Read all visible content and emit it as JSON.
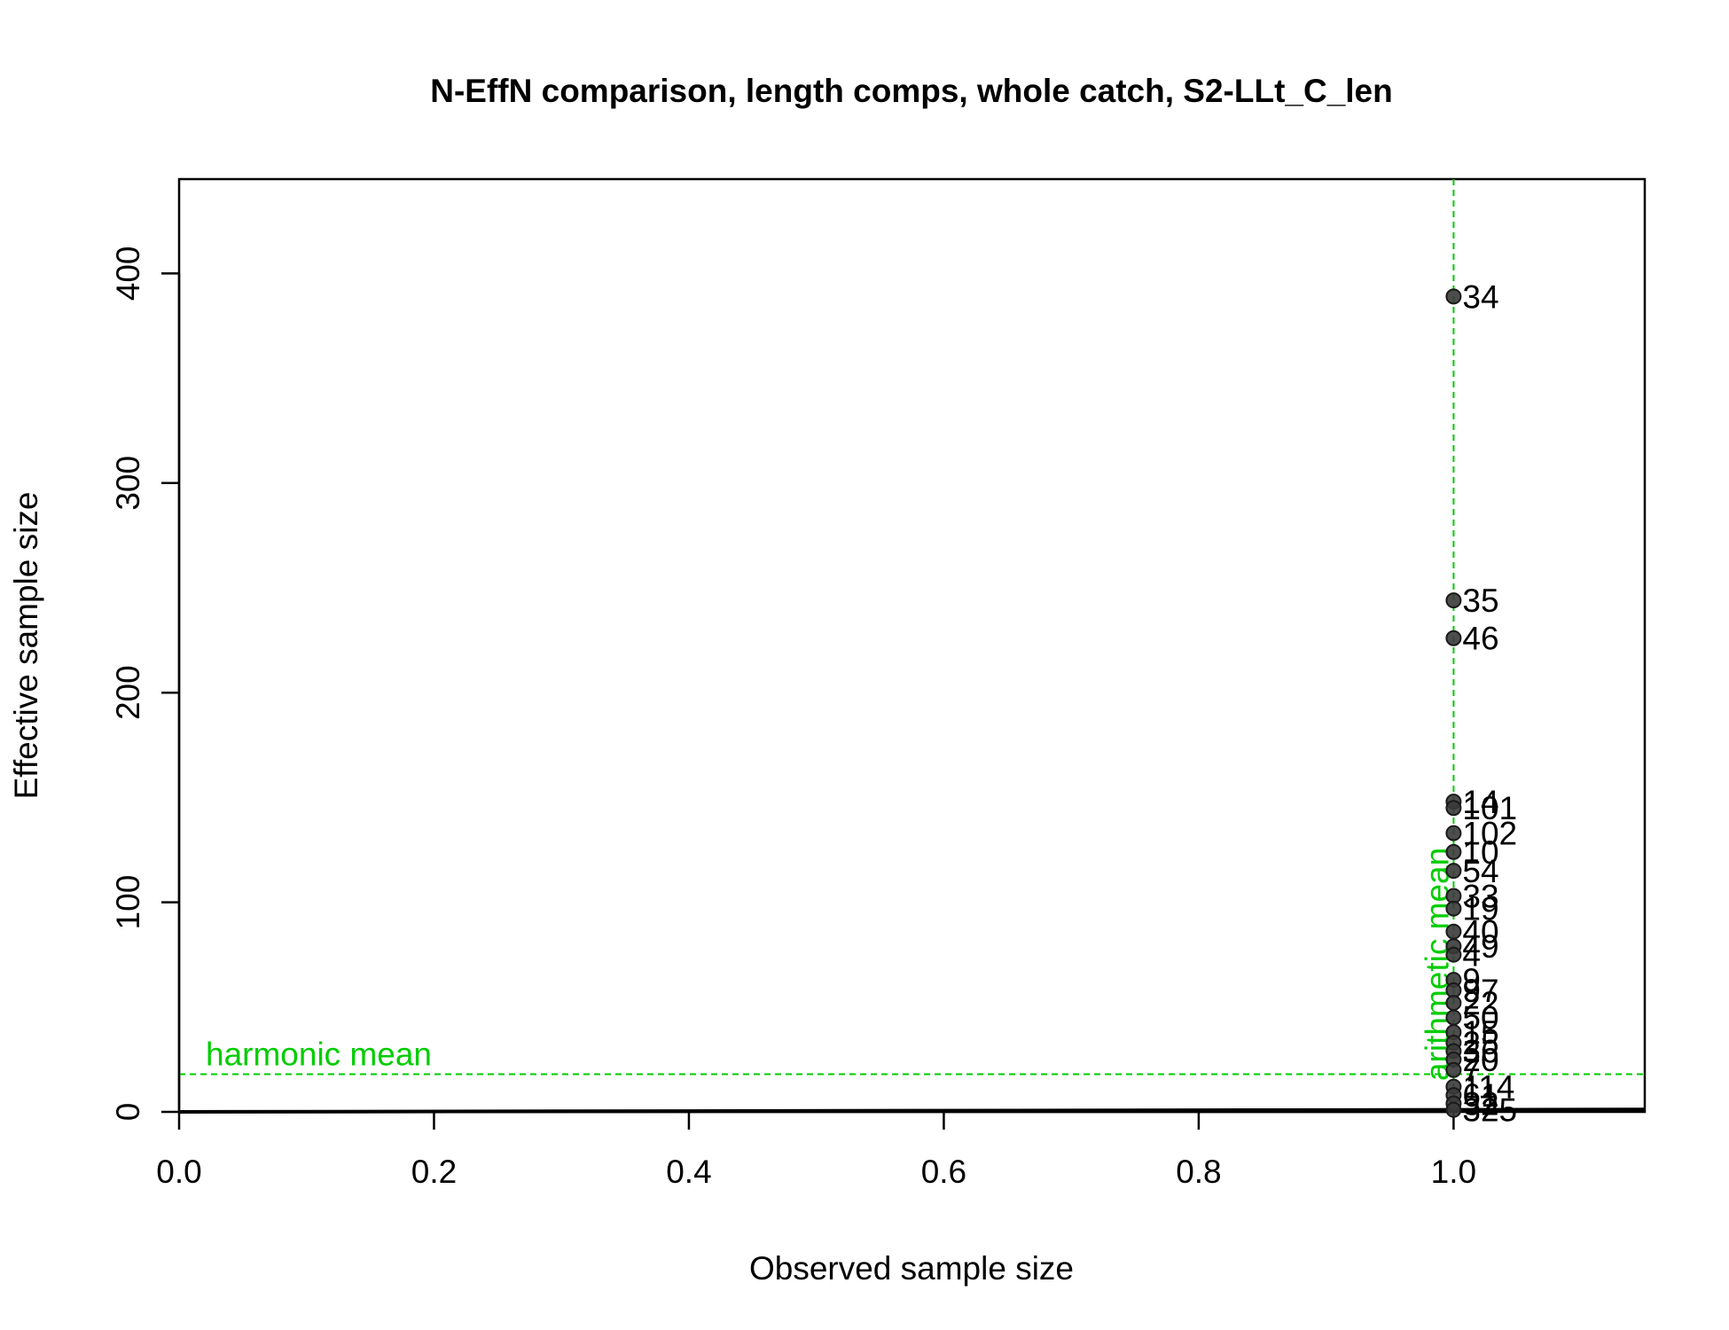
{
  "chart_data": {
    "type": "scatter",
    "title": "N-EffN comparison, length comps, whole catch, S2-LLt_C_len",
    "xlabel": "Observed sample size",
    "ylabel": "Effective sample size",
    "xlim": [
      0,
      1.15
    ],
    "ylim": [
      0,
      445
    ],
    "xticks": [
      "0.0",
      "0.2",
      "0.4",
      "0.6",
      "0.8",
      "1.0"
    ],
    "yticks": [
      "0",
      "100",
      "200",
      "300",
      "400"
    ],
    "grid": false,
    "points": [
      {
        "x": 1,
        "y": 389,
        "label": "34"
      },
      {
        "x": 1,
        "y": 244,
        "label": "35"
      },
      {
        "x": 1,
        "y": 226,
        "label": "46"
      },
      {
        "x": 1,
        "y": 148,
        "label": "14"
      },
      {
        "x": 1,
        "y": 145,
        "label": "101"
      },
      {
        "x": 1,
        "y": 133,
        "label": "102"
      },
      {
        "x": 1,
        "y": 124,
        "label": "10"
      },
      {
        "x": 1,
        "y": 115,
        "label": "54"
      },
      {
        "x": 1,
        "y": 103,
        "label": "33"
      },
      {
        "x": 1,
        "y": 97,
        "label": "19"
      },
      {
        "x": 1,
        "y": 86,
        "label": "40"
      },
      {
        "x": 1,
        "y": 79,
        "label": "49"
      },
      {
        "x": 1,
        "y": 75,
        "label": "4"
      },
      {
        "x": 1,
        "y": 63,
        "label": "9"
      },
      {
        "x": 1,
        "y": 58,
        "label": "97"
      },
      {
        "x": 1,
        "y": 52,
        "label": "22"
      },
      {
        "x": 1,
        "y": 45,
        "label": "50"
      },
      {
        "x": 1,
        "y": 38,
        "label": "15"
      },
      {
        "x": 1,
        "y": 33,
        "label": "25"
      },
      {
        "x": 1,
        "y": 29,
        "label": "36"
      },
      {
        "x": 1,
        "y": 25,
        "label": "20"
      },
      {
        "x": 1,
        "y": 20,
        "label": "7"
      },
      {
        "x": 1,
        "y": 12,
        "label": "114"
      },
      {
        "x": 1,
        "y": 8,
        "label": "61"
      },
      {
        "x": 1,
        "y": 4,
        "label": "32"
      },
      {
        "x": 1,
        "y": 1,
        "label": "325"
      }
    ],
    "reference_lines": [
      {
        "orientation": "horizontal",
        "value": 18,
        "label": "harmonic mean",
        "color": "#00cc00",
        "style": "dashed"
      },
      {
        "orientation": "vertical",
        "value": 1.0,
        "label": "arithmetic mean",
        "color": "#00cc00",
        "style": "dashed"
      }
    ],
    "diagonal_line": {
      "from": [
        0,
        0
      ],
      "to": [
        1.15,
        1.15
      ],
      "color": "#000000"
    }
  },
  "colors": {
    "point_fill": "#3a3a3a",
    "point_stroke": "#1a1a1a",
    "reference": "#00cc00",
    "axis": "#000000"
  }
}
